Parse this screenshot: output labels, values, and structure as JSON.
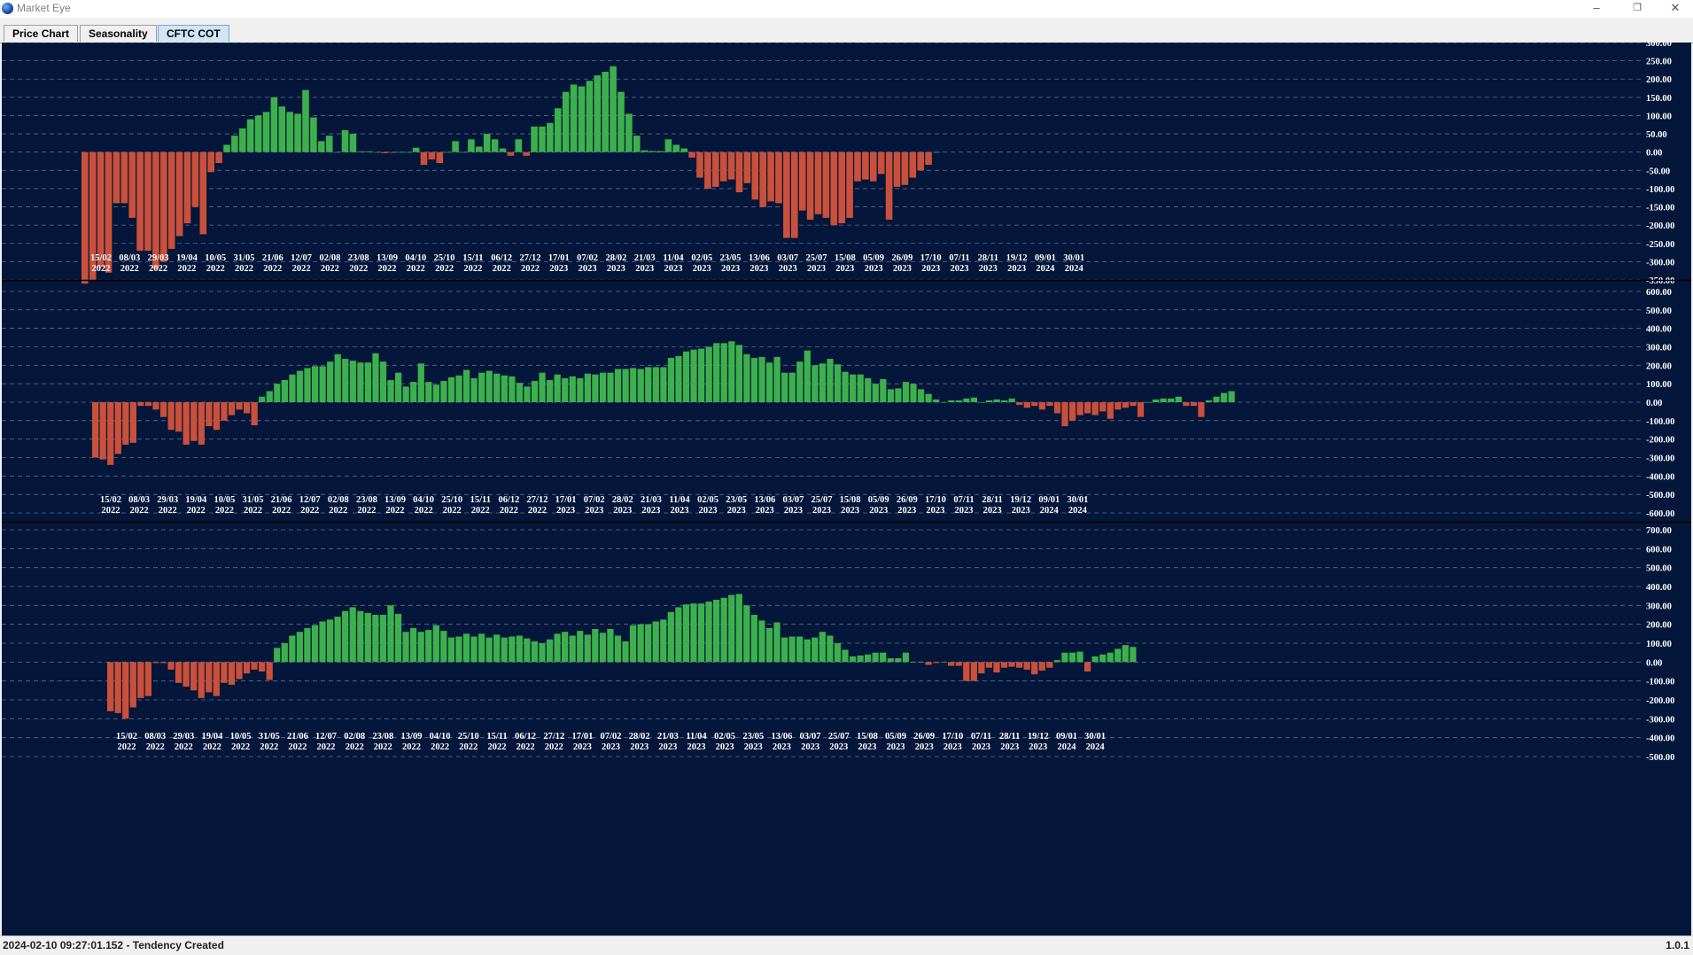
{
  "window": {
    "title": "Market Eye",
    "minimize": "–",
    "restore": "❐",
    "close": "✕"
  },
  "tabs": [
    {
      "label": "Price Chart",
      "active": false
    },
    {
      "label": "Seasonality",
      "active": false
    },
    {
      "label": "CFTC COT",
      "active": true
    }
  ],
  "status": {
    "text": "2024-02-10 09:27:01.152 - Tendency Created",
    "version": "1.0.1"
  },
  "colors": {
    "background": "#04163a",
    "positive": "#3cb04c",
    "negative": "#c9503b",
    "grid": "#7f8aa3"
  },
  "chart_data": [
    {
      "type": "bar",
      "grid": true,
      "ylim": [
        -350,
        300
      ],
      "yticks": [
        300,
        250,
        200,
        150,
        100,
        50,
        0,
        -50,
        -100,
        -150,
        -200,
        -250,
        -300,
        -350
      ],
      "date_labels": [
        [
          "15/02",
          "2022"
        ],
        [
          "08/03",
          "2022"
        ],
        [
          "29/03",
          "2022"
        ],
        [
          "19/04",
          "2022"
        ],
        [
          "10/05",
          "2022"
        ],
        [
          "31/05",
          "2022"
        ],
        [
          "21/06",
          "2022"
        ],
        [
          "12/07",
          "2022"
        ],
        [
          "02/08",
          "2022"
        ],
        [
          "23/08",
          "2022"
        ],
        [
          "13/09",
          "2022"
        ],
        [
          "04/10",
          "2022"
        ],
        [
          "25/10",
          "2022"
        ],
        [
          "15/11",
          "2022"
        ],
        [
          "06/12",
          "2022"
        ],
        [
          "27/12",
          "2022"
        ],
        [
          "17/01",
          "2023"
        ],
        [
          "07/02",
          "2023"
        ],
        [
          "28/02",
          "2023"
        ],
        [
          "21/03",
          "2023"
        ],
        [
          "11/04",
          "2023"
        ],
        [
          "02/05",
          "2023"
        ],
        [
          "23/05",
          "2023"
        ],
        [
          "13/06",
          "2023"
        ],
        [
          "03/07",
          "2023"
        ],
        [
          "25/07",
          "2023"
        ],
        [
          "15/08",
          "2023"
        ],
        [
          "05/09",
          "2023"
        ],
        [
          "26/09",
          "2023"
        ],
        [
          "17/10",
          "2023"
        ],
        [
          "07/11",
          "2023"
        ],
        [
          "28/11",
          "2023"
        ],
        [
          "19/12",
          "2023"
        ],
        [
          "09/01",
          "2024"
        ],
        [
          "30/01",
          "2024"
        ]
      ],
      "values": [
        -360,
        -350,
        -315,
        -330,
        -140,
        -140,
        -180,
        -270,
        -270,
        -320,
        -300,
        -265,
        -230,
        -195,
        -150,
        -225,
        -55,
        -30,
        20,
        45,
        65,
        90,
        100,
        110,
        150,
        125,
        110,
        105,
        170,
        95,
        30,
        45,
        0,
        60,
        50,
        2,
        2,
        0,
        -3,
        -2,
        0,
        0,
        12,
        -35,
        -20,
        -30,
        0,
        30,
        0,
        35,
        15,
        50,
        35,
        10,
        -10,
        35,
        -10,
        70,
        70,
        80,
        120,
        165,
        185,
        180,
        195,
        210,
        220,
        235,
        165,
        105,
        45,
        5,
        3,
        3,
        35,
        20,
        10,
        -15,
        -70,
        -100,
        -95,
        -80,
        -75,
        -110,
        -85,
        -130,
        -150,
        -135,
        -140,
        -235,
        -235,
        -160,
        -185,
        -170,
        -180,
        -200,
        -195,
        -180,
        -80,
        -75,
        -80,
        -60,
        -185,
        -95,
        -90,
        -70,
        -50,
        -35,
        0
      ]
    },
    {
      "type": "bar",
      "grid": true,
      "ylim": [
        -600,
        600
      ],
      "yticks": [
        600,
        500,
        400,
        300,
        200,
        100,
        0,
        -100,
        -200,
        -300,
        -400,
        -500,
        -600
      ],
      "date_labels": [
        [
          "15/02",
          "2022"
        ],
        [
          "08/03",
          "2022"
        ],
        [
          "29/03",
          "2022"
        ],
        [
          "19/04",
          "2022"
        ],
        [
          "10/05",
          "2022"
        ],
        [
          "31/05",
          "2022"
        ],
        [
          "21/06",
          "2022"
        ],
        [
          "12/07",
          "2022"
        ],
        [
          "02/08",
          "2022"
        ],
        [
          "23/08",
          "2022"
        ],
        [
          "13/09",
          "2022"
        ],
        [
          "04/10",
          "2022"
        ],
        [
          "25/10",
          "2022"
        ],
        [
          "15/11",
          "2022"
        ],
        [
          "06/12",
          "2022"
        ],
        [
          "27/12",
          "2022"
        ],
        [
          "17/01",
          "2023"
        ],
        [
          "07/02",
          "2023"
        ],
        [
          "28/02",
          "2023"
        ],
        [
          "21/03",
          "2023"
        ],
        [
          "11/04",
          "2023"
        ],
        [
          "02/05",
          "2023"
        ],
        [
          "23/05",
          "2023"
        ],
        [
          "13/06",
          "2023"
        ],
        [
          "03/07",
          "2023"
        ],
        [
          "25/07",
          "2023"
        ],
        [
          "15/08",
          "2023"
        ],
        [
          "05/09",
          "2023"
        ],
        [
          "26/09",
          "2023"
        ],
        [
          "17/10",
          "2023"
        ],
        [
          "07/11",
          "2023"
        ],
        [
          "28/11",
          "2023"
        ],
        [
          "19/12",
          "2023"
        ],
        [
          "09/01",
          "2024"
        ],
        [
          "30/01",
          "2024"
        ]
      ],
      "values": [
        -300,
        -310,
        -340,
        -280,
        -230,
        -220,
        -20,
        -20,
        -40,
        -80,
        -150,
        -160,
        -230,
        -210,
        -230,
        -130,
        -150,
        -100,
        -70,
        -40,
        -60,
        -125,
        30,
        60,
        100,
        120,
        150,
        170,
        185,
        195,
        195,
        220,
        260,
        235,
        225,
        215,
        215,
        265,
        220,
        120,
        160,
        85,
        110,
        210,
        110,
        95,
        115,
        135,
        145,
        175,
        130,
        160,
        170,
        155,
        145,
        140,
        105,
        85,
        115,
        160,
        120,
        150,
        130,
        140,
        130,
        155,
        150,
        160,
        160,
        180,
        180,
        185,
        180,
        190,
        190,
        190,
        240,
        250,
        275,
        285,
        290,
        300,
        320,
        320,
        330,
        310,
        260,
        240,
        245,
        215,
        245,
        160,
        160,
        220,
        280,
        200,
        210,
        235,
        205,
        165,
        150,
        150,
        130,
        100,
        125,
        70,
        75,
        110,
        100,
        70,
        45,
        15,
        0,
        10,
        10,
        20,
        25,
        0,
        10,
        15,
        10,
        20,
        -15,
        -30,
        -20,
        -40,
        -20,
        -60,
        -130,
        -100,
        -70,
        -60,
        -70,
        -50,
        -90,
        -40,
        -30,
        -20,
        -80,
        0,
        15,
        20,
        20,
        30,
        -20,
        -20,
        -80,
        10,
        30,
        50,
        60
      ]
    },
    {
      "type": "bar",
      "grid": true,
      "ylim": [
        -500,
        700
      ],
      "yticks": [
        700,
        600,
        500,
        400,
        300,
        200,
        100,
        0,
        -100,
        -200,
        -300,
        -400,
        -500
      ],
      "date_labels": [
        [
          "15/02",
          "2022"
        ],
        [
          "08/03",
          "2022"
        ],
        [
          "29/03",
          "2022"
        ],
        [
          "19/04",
          "2022"
        ],
        [
          "10/05",
          "2022"
        ],
        [
          "31/05",
          "2022"
        ],
        [
          "21/06",
          "2022"
        ],
        [
          "12/07",
          "2022"
        ],
        [
          "02/08",
          "2022"
        ],
        [
          "23/08",
          "2022"
        ],
        [
          "13/09",
          "2022"
        ],
        [
          "04/10",
          "2022"
        ],
        [
          "25/10",
          "2022"
        ],
        [
          "15/11",
          "2022"
        ],
        [
          "06/12",
          "2022"
        ],
        [
          "27/12",
          "2022"
        ],
        [
          "17/01",
          "2023"
        ],
        [
          "07/02",
          "2023"
        ],
        [
          "28/02",
          "2023"
        ],
        [
          "21/03",
          "2023"
        ],
        [
          "11/04",
          "2023"
        ],
        [
          "02/05",
          "2023"
        ],
        [
          "23/05",
          "2023"
        ],
        [
          "13/06",
          "2023"
        ],
        [
          "03/07",
          "2023"
        ],
        [
          "25/07",
          "2023"
        ],
        [
          "15/08",
          "2023"
        ],
        [
          "05/09",
          "2023"
        ],
        [
          "26/09",
          "2023"
        ],
        [
          "17/10",
          "2023"
        ],
        [
          "07/11",
          "2023"
        ],
        [
          "28/11",
          "2023"
        ],
        [
          "19/12",
          "2023"
        ],
        [
          "09/01",
          "2024"
        ],
        [
          "30/01",
          "2024"
        ]
      ],
      "values": [
        -260,
        -270,
        -300,
        -240,
        -190,
        -180,
        -5,
        -5,
        -40,
        -110,
        -130,
        -150,
        -190,
        -160,
        -180,
        -110,
        -120,
        -90,
        -60,
        -40,
        -50,
        -95,
        75,
        100,
        140,
        160,
        180,
        195,
        215,
        225,
        240,
        270,
        290,
        270,
        260,
        250,
        250,
        300,
        255,
        160,
        180,
        160,
        170,
        195,
        165,
        130,
        135,
        150,
        135,
        150,
        130,
        145,
        130,
        135,
        140,
        125,
        110,
        100,
        120,
        150,
        160,
        140,
        165,
        145,
        175,
        155,
        175,
        140,
        110,
        195,
        200,
        200,
        215,
        225,
        265,
        290,
        305,
        310,
        310,
        320,
        330,
        340,
        355,
        360,
        300,
        250,
        220,
        180,
        210,
        130,
        135,
        135,
        120,
        130,
        160,
        140,
        100,
        65,
        30,
        35,
        40,
        50,
        50,
        20,
        20,
        50,
        0,
        0,
        -15,
        -5,
        0,
        -20,
        -20,
        -100,
        -100,
        -60,
        -30,
        -55,
        -30,
        -25,
        -30,
        -40,
        -65,
        -45,
        -30,
        10,
        50,
        50,
        55,
        -50,
        30,
        40,
        50,
        70,
        90,
        80
      ]
    }
  ]
}
